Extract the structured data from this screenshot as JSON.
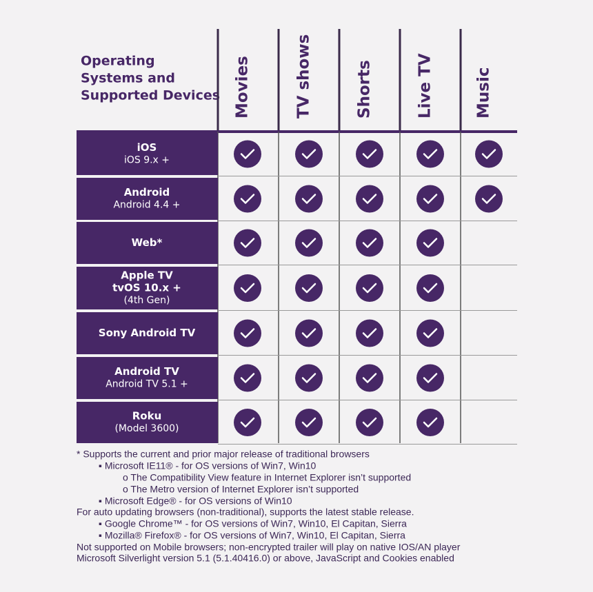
{
  "header": {
    "title": [
      "Operating",
      "Systems and",
      "Supported Devices"
    ],
    "columns": [
      "Movies",
      "TV shows",
      "Shorts",
      "Live TV",
      "Music"
    ]
  },
  "rows": [
    {
      "title": [
        "iOS"
      ],
      "subtitle": "iOS 9.x +",
      "cells": [
        true,
        true,
        true,
        true,
        true
      ]
    },
    {
      "title": [
        "Android"
      ],
      "subtitle": "Android 4.4 +",
      "cells": [
        true,
        true,
        true,
        true,
        true
      ]
    },
    {
      "title": [
        "Web*"
      ],
      "cells": [
        true,
        true,
        true,
        true,
        false
      ]
    },
    {
      "title": [
        "Apple TV",
        "tvOS 10.x +"
      ],
      "subtitle": "(4th Gen)",
      "cells": [
        true,
        true,
        true,
        true,
        false
      ]
    },
    {
      "title": [
        "Sony Android TV"
      ],
      "cells": [
        true,
        true,
        true,
        true,
        false
      ]
    },
    {
      "title": [
        "Android TV"
      ],
      "subtitle": "Android TV 5.1 +",
      "cells": [
        true,
        true,
        true,
        true,
        false
      ]
    },
    {
      "title": [
        "Roku"
      ],
      "subtitle": "(Model 3600)",
      "cells": [
        true,
        true,
        true,
        true,
        false
      ]
    }
  ],
  "notes": [
    "*  Supports the current and prior major release of traditional browsers",
    "▪ Microsoft IE11® - for OS versions of Win7, Win10",
    "o The Compatibility View feature in Internet Explorer isn’t supported",
    "o The Metro version of Internet Explorer isn’t supported",
    "▪ Microsoft Edge® - for OS versions of Win10",
    "For auto updating browsers (non-traditional), supports the latest stable release.",
    "▪ Google Chrome™ - for OS versions of Win7, Win10, El Capitan, Sierra",
    "▪ Mozilla® Firefox® - for OS versions of Win7, Win10, El Capitan, Sierra",
    "Not supported on Mobile browsers; non-encrypted trailer will play on native IOS/AN player",
    "Microsoft Silverlight version 5.1 (5.1.40416.0) or above, JavaScript and Cookies enabled"
  ]
}
